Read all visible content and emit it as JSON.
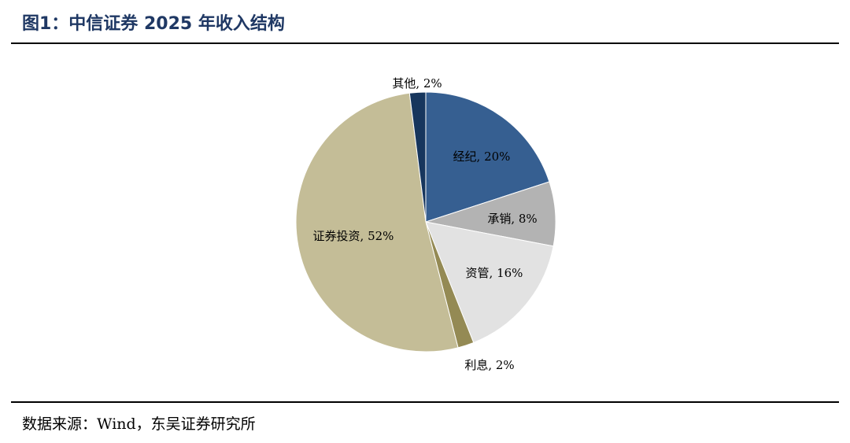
{
  "figure": {
    "title": "图1：中信证券 2025 年收入结构",
    "source": "数据来源：Wind，东吴证券研究所"
  },
  "chart_data": {
    "type": "pie",
    "slices": [
      {
        "name": "经纪",
        "value": 20,
        "label": "经纪, 20%",
        "color": "#365f91"
      },
      {
        "name": "承销",
        "value": 8,
        "label": "承销, 8%",
        "color": "#b3b3b3"
      },
      {
        "name": "资管",
        "value": 16,
        "label": "资管, 16%",
        "color": "#e2e2e2"
      },
      {
        "name": "利息",
        "value": 2,
        "label": "利息, 2%",
        "color": "#948a54"
      },
      {
        "name": "证券投资",
        "value": 52,
        "label": "证券投资, 52%",
        "color": "#c4bd97"
      },
      {
        "name": "其他",
        "value": 2,
        "label": "其他, 2%",
        "color": "#17365d"
      }
    ]
  }
}
